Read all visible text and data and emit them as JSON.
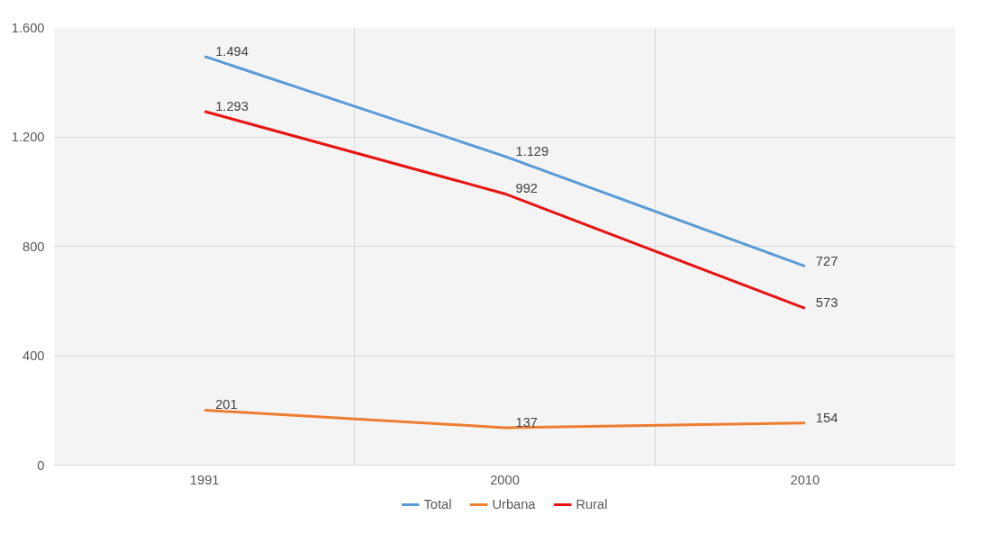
{
  "chart_data": {
    "type": "line",
    "categories": [
      "1991",
      "2000",
      "2010"
    ],
    "series": [
      {
        "name": "Total",
        "color": "#5b9bd5",
        "values": [
          1494,
          1129,
          727
        ],
        "value_labels": [
          "1.494",
          "1.129",
          "727"
        ]
      },
      {
        "name": "Urbana",
        "color": "#ed7d31",
        "values": [
          201,
          137,
          154
        ],
        "value_labels": [
          "201",
          "137",
          "154"
        ]
      },
      {
        "name": "Rural",
        "color": "#e81313",
        "values": [
          1293,
          992,
          573
        ],
        "value_labels": [
          "1.293",
          "992",
          "573"
        ]
      }
    ],
    "ylim": [
      0,
      1600
    ],
    "yticks": [
      0,
      400,
      800,
      {
        "value": 1200,
        "label": "1.200"
      },
      {
        "value": 1600,
        "label": "1.600"
      }
    ],
    "grid": true,
    "legend": "bottom",
    "marker": "none",
    "line_style": "solid"
  }
}
